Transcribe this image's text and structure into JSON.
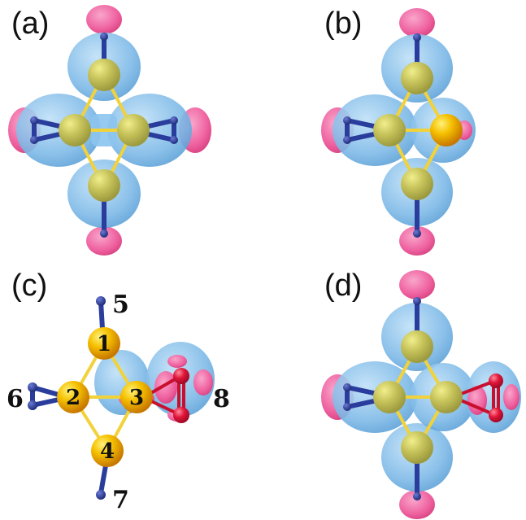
{
  "panels": [
    {
      "id": "a",
      "label": "(a)"
    },
    {
      "id": "b",
      "label": "(b)"
    },
    {
      "id": "c",
      "label": "(c)"
    },
    {
      "id": "d",
      "label": "(d)"
    }
  ],
  "labels_c": {
    "atom1": "1",
    "atom2": "2",
    "atom3": "3",
    "atom4": "4",
    "site5": "5",
    "site6": "6",
    "site7": "7",
    "site8": "8"
  },
  "colors": {
    "cloud_blue": "#6fb3e6",
    "cloud_pink": "#ef5c9b",
    "gold": "#f5b400",
    "ligand_blue": "#2a3d9c",
    "oxygen_red": "#e0153a",
    "bond_yellow": "#f2d23a"
  }
}
